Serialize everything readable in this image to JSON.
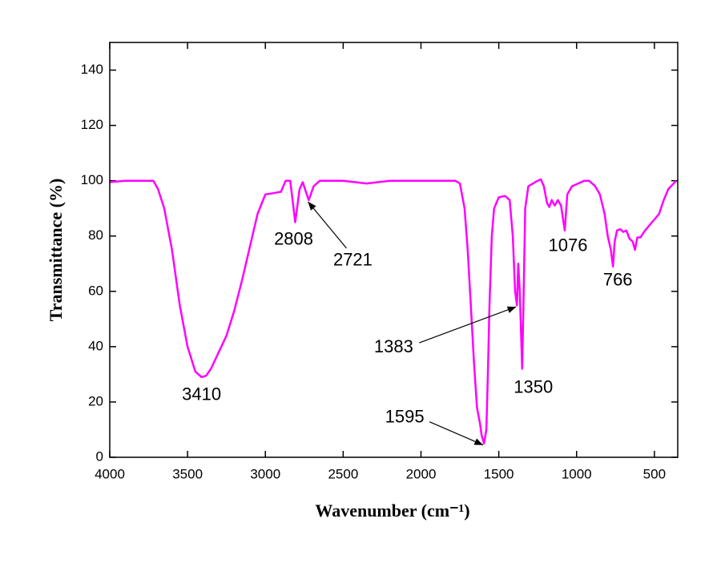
{
  "chart_data": {
    "type": "line",
    "xlabel": "Wavenumber (cm⁻¹)",
    "ylabel": "Transmittance (%)",
    "xlim": [
      4000,
      350
    ],
    "ylim": [
      0,
      150
    ],
    "xticks": [
      4000,
      3500,
      3000,
      2500,
      2000,
      1500,
      1000,
      500
    ],
    "yticks": [
      0,
      20,
      40,
      60,
      80,
      100,
      120,
      140
    ],
    "grid": false,
    "series": [
      {
        "name": "Transmittance",
        "color": "#ff00ff",
        "x": [
          4000,
          3900,
          3800,
          3720,
          3690,
          3650,
          3600,
          3550,
          3500,
          3450,
          3410,
          3380,
          3350,
          3300,
          3250,
          3200,
          3150,
          3100,
          3050,
          3000,
          2950,
          2900,
          2870,
          2840,
          2808,
          2780,
          2760,
          2740,
          2721,
          2690,
          2650,
          2500,
          2350,
          2200,
          2000,
          1850,
          1780,
          1750,
          1720,
          1700,
          1680,
          1660,
          1640,
          1620,
          1610,
          1595,
          1580,
          1570,
          1560,
          1545,
          1530,
          1500,
          1460,
          1430,
          1410,
          1395,
          1383,
          1375,
          1365,
          1350,
          1340,
          1330,
          1310,
          1280,
          1250,
          1230,
          1210,
          1190,
          1175,
          1160,
          1140,
          1120,
          1100,
          1076,
          1060,
          1030,
          990,
          950,
          920,
          880,
          850,
          820,
          800,
          780,
          766,
          755,
          740,
          720,
          700,
          680,
          660,
          640,
          625,
          610,
          590,
          560,
          530,
          500,
          470,
          440,
          410,
          360
        ],
        "values": [
          99.5,
          100,
          100,
          100,
          97,
          90,
          75,
          55,
          40,
          31,
          29,
          29.5,
          32,
          38,
          44,
          53,
          64,
          76,
          88,
          95,
          95.5,
          96,
          100,
          100,
          85,
          97,
          99.5,
          96,
          93,
          98,
          100,
          100,
          99,
          100,
          100,
          100,
          100,
          99,
          90,
          75,
          55,
          35,
          18,
          12,
          8,
          5,
          10,
          30,
          55,
          80,
          90,
          94,
          94.5,
          93,
          80,
          60,
          55,
          70,
          60,
          32,
          60,
          90,
          98,
          99,
          100,
          100.5,
          98,
          92,
          90.5,
          93,
          91,
          93,
          91,
          82,
          95,
          98,
          99,
          100,
          100,
          98,
          95,
          88,
          80,
          75,
          69,
          78,
          82,
          82.5,
          81.5,
          82,
          79,
          78,
          75,
          79.5,
          79.5,
          82,
          84,
          86,
          88,
          93,
          97,
          100
        ]
      }
    ],
    "annotations": [
      {
        "text": "3410",
        "x": 3410,
        "y": 29
      },
      {
        "text": "2808",
        "x": 2808,
        "y": 85
      },
      {
        "text": "2721",
        "x": 2721,
        "y": 93
      },
      {
        "text": "1595",
        "x": 1595,
        "y": 5
      },
      {
        "text": "1383",
        "x": 1383,
        "y": 55
      },
      {
        "text": "1350",
        "x": 1350,
        "y": 32
      },
      {
        "text": "1076",
        "x": 1076,
        "y": 82
      },
      {
        "text": "766",
        "x": 766,
        "y": 69
      }
    ]
  }
}
